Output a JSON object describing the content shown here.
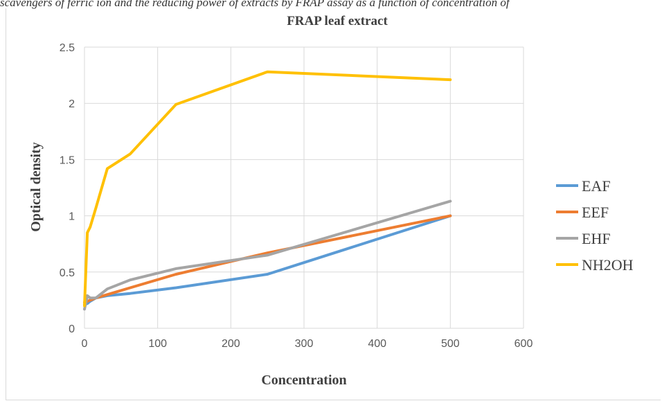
{
  "caption": "scavengers of ferric ion and the reducing power of extracts by FRAP assay as a function of concentration of",
  "chart_data": {
    "type": "line",
    "title": "FRAP leaf extract",
    "xlabel": "Concentration",
    "ylabel": "Optical density",
    "xlim": [
      0,
      600
    ],
    "ylim": [
      0,
      2.5
    ],
    "xticks": [
      "0",
      "100",
      "200",
      "300",
      "400",
      "500",
      "600"
    ],
    "yticks": [
      "0",
      "0.5",
      "1",
      "1.5",
      "2",
      "2.5"
    ],
    "grid": true,
    "legend_position": "right",
    "x": [
      0,
      3.9,
      7.8,
      15.6,
      31.25,
      62.5,
      125,
      250,
      500
    ],
    "series": [
      {
        "name": "EAF",
        "color": "#5b9bd5",
        "values": [
          0.21,
          0.22,
          0.24,
          0.27,
          0.29,
          0.31,
          0.36,
          0.48,
          1.0
        ]
      },
      {
        "name": "EEF",
        "color": "#ed7d31",
        "values": [
          0.23,
          0.24,
          0.25,
          0.27,
          0.3,
          0.36,
          0.48,
          0.67,
          1.0
        ]
      },
      {
        "name": "EHF",
        "color": "#a5a5a5",
        "values": [
          0.17,
          0.29,
          0.27,
          0.27,
          0.35,
          0.43,
          0.53,
          0.65,
          1.13
        ]
      },
      {
        "name": "NH2OH",
        "color": "#ffc000",
        "values": [
          0.2,
          0.85,
          0.9,
          1.07,
          1.42,
          1.55,
          1.99,
          2.28,
          2.21
        ]
      }
    ]
  }
}
